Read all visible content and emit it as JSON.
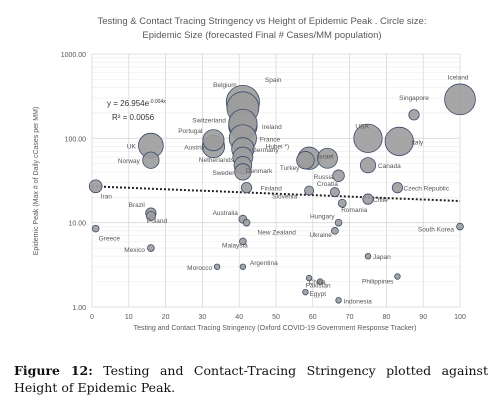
{
  "caption": {
    "label": "Figure 12:",
    "text": "Testing and Contact-Tracing Stringency plotted against Height of Epidemic Peak."
  },
  "chart_data": {
    "type": "scatter",
    "title": "Testing & Contact Tracing Stringency vs Height of Epidemic Peak . Circle size:",
    "subtitle": "Epidemic Size (forecasted Final # Cases/MM population)",
    "xlabel": "Testing and Contact Tracing Stringency (Oxford COVID-19 Government Response Tracker)",
    "ylabel": "Epidemic Peak (Max # of Daily cCases per MM)",
    "xlim": [
      0,
      100
    ],
    "ylim": [
      1,
      1000
    ],
    "yscale": "log",
    "xticks": [
      "0",
      "10",
      "20",
      "30",
      "40",
      "50",
      "60",
      "70",
      "80",
      "90",
      "100"
    ],
    "yticks": [
      "1.00",
      "10.00",
      "100.00",
      "1000.00"
    ],
    "grid": true,
    "trendline": {
      "type": "exponential",
      "a": 26.954,
      "b": -0.004,
      "equation": "y = 26.954e",
      "exponent": "-0.004x",
      "r2": "R² = 0.0056"
    },
    "colors": {
      "bubble_fill": "#9c9c9c",
      "bubble_stroke": "#3a4a6a",
      "grid": "#d9d9d9",
      "trend": "#222222",
      "label": "#555555"
    },
    "points": [
      {
        "label": "Iceland",
        "x": 100,
        "y": 290,
        "size": 2.2
      },
      {
        "label": "Singapore",
        "x": 87.5,
        "y": 190,
        "size": 0.5
      },
      {
        "label": "Italy",
        "x": 83.5,
        "y": 92,
        "size": 2.0
      },
      {
        "label": "USA",
        "x": 75,
        "y": 100,
        "size": 2.0
      },
      {
        "label": "Canada",
        "x": 75,
        "y": 48,
        "size": 0.9
      },
      {
        "label": "Israel",
        "x": 64,
        "y": 58,
        "size": 1.3
      },
      {
        "label": "Hubei *)",
        "x": 59,
        "y": 58,
        "size": 1.5
      },
      {
        "label": "Russia",
        "x": 67,
        "y": 36,
        "size": 0.6
      },
      {
        "label": "Czech Republic",
        "x": 83,
        "y": 26,
        "size": 0.5
      },
      {
        "label": "Croatia",
        "x": 66,
        "y": 23,
        "size": 0.4
      },
      {
        "label": "Chile",
        "x": 75,
        "y": 19,
        "size": 0.5
      },
      {
        "label": "Romania",
        "x": 68,
        "y": 17,
        "size": 0.3
      },
      {
        "label": "South Korea",
        "x": 100,
        "y": 9,
        "size": 0.2
      },
      {
        "label": "Hungary",
        "x": 67,
        "y": 10,
        "size": 0.2
      },
      {
        "label": "Ukraine",
        "x": 66,
        "y": 8,
        "size": 0.2
      },
      {
        "label": "Japan",
        "x": 75,
        "y": 4,
        "size": 0.1
      },
      {
        "label": "Philippines",
        "x": 83,
        "y": 2.3,
        "size": 0.1
      },
      {
        "label": "Pakistan",
        "x": 62,
        "y": 2,
        "size": 0.1
      },
      {
        "label": "China",
        "x": 59,
        "y": 2.2,
        "size": 0.1
      },
      {
        "label": "Indonesia",
        "x": 67,
        "y": 1.2,
        "size": 0.1
      },
      {
        "label": "Egypt",
        "x": 58,
        "y": 1.5,
        "size": 0.1
      },
      {
        "label": "Slovenia",
        "x": 59,
        "y": 24,
        "size": 0.4
      },
      {
        "label": "Turkey",
        "x": 58,
        "y": 55,
        "size": 1.1
      },
      {
        "label": "Spain",
        "x": 41,
        "y": 270,
        "size": 2.4
      },
      {
        "label": "Belgium",
        "x": 41,
        "y": 230,
        "size": 2.3
      },
      {
        "label": "Ireland",
        "x": 41,
        "y": 140,
        "size": 2.0
      },
      {
        "label": "Switzerland",
        "x": 41,
        "y": 150,
        "size": 2.0
      },
      {
        "label": "France",
        "x": 41,
        "y": 100,
        "size": 1.9
      },
      {
        "label": "Germany",
        "x": 41,
        "y": 75,
        "size": 1.5
      },
      {
        "label": "Netherlands",
        "x": 41,
        "y": 60,
        "size": 1.3
      },
      {
        "label": "Portugal",
        "x": 33,
        "y": 95,
        "size": 1.4
      },
      {
        "label": "Austria",
        "x": 33,
        "y": 80,
        "size": 1.5
      },
      {
        "label": "Denmark",
        "x": 41,
        "y": 48,
        "size": 1.1
      },
      {
        "label": "Sweden",
        "x": 41,
        "y": 40,
        "size": 1.0
      },
      {
        "label": "Finland",
        "x": 42,
        "y": 26,
        "size": 0.5
      },
      {
        "label": "UK",
        "x": 16,
        "y": 82,
        "size": 1.7
      },
      {
        "label": "Norway",
        "x": 16,
        "y": 55,
        "size": 1.0
      },
      {
        "label": "Iran",
        "x": 1,
        "y": 27,
        "size": 0.7
      },
      {
        "label": "Brazil",
        "x": 16,
        "y": 13,
        "size": 0.5
      },
      {
        "label": "Poland",
        "x": 16,
        "y": 12,
        "size": 0.4
      },
      {
        "label": "Greece",
        "x": 1,
        "y": 8.5,
        "size": 0.2
      },
      {
        "label": "Mexico",
        "x": 16,
        "y": 5,
        "size": 0.2
      },
      {
        "label": "Australia",
        "x": 41,
        "y": 11,
        "size": 0.3
      },
      {
        "label": "New Zealand",
        "x": 42,
        "y": 10,
        "size": 0.2
      },
      {
        "label": "Malaysia",
        "x": 41,
        "y": 6,
        "size": 0.2
      },
      {
        "label": "Argentina",
        "x": 41,
        "y": 3,
        "size": 0.1
      },
      {
        "label": "Morocco",
        "x": 34,
        "y": 3,
        "size": 0.1
      }
    ]
  }
}
